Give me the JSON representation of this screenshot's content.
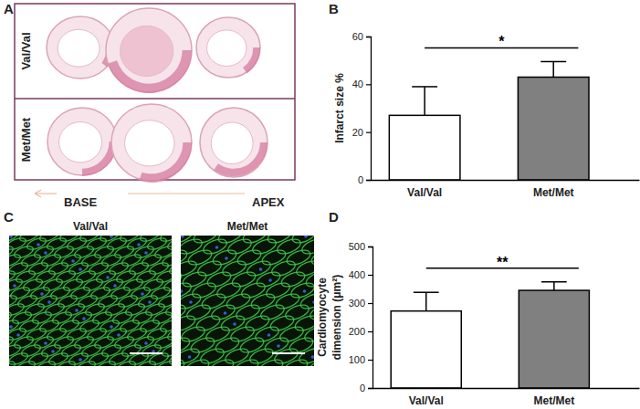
{
  "chart_data": [
    {
      "type": "bar",
      "y_label": "Infarct size %",
      "categories": [
        "Val/Val",
        "Met/Met"
      ],
      "values": [
        27,
        43
      ],
      "errors": [
        12,
        6.5
      ],
      "colors": [
        "#ffffff",
        "#808080"
      ],
      "ylim": [
        0,
        60
      ],
      "yticks": [
        0,
        20,
        40,
        60
      ],
      "annotations": [
        {
          "text": "*"
        }
      ]
    },
    {
      "type": "bar",
      "y_label": [
        "Cardiomyocyte",
        "dimension (μm²)"
      ],
      "categories": [
        "Val/Val",
        "Met/Met"
      ],
      "values": [
        272,
        345
      ],
      "errors": [
        66,
        30
      ],
      "colors": [
        "#ffffff",
        "#808080"
      ],
      "ylim": [
        0,
        500
      ],
      "yticks": [
        0,
        100,
        200,
        300,
        400,
        500
      ],
      "annotations": [
        {
          "text": "**"
        }
      ]
    }
  ],
  "figure": {
    "panel_labels": [
      "A",
      "B",
      "C",
      "D"
    ],
    "panel_a": {
      "row_labels": [
        "Val/Val",
        "Met/Met"
      ],
      "base_label": "BASE",
      "apex_label": "APEX"
    },
    "panel_c": {
      "column_labels": [
        "Val/Val",
        "Met/Met"
      ]
    }
  }
}
